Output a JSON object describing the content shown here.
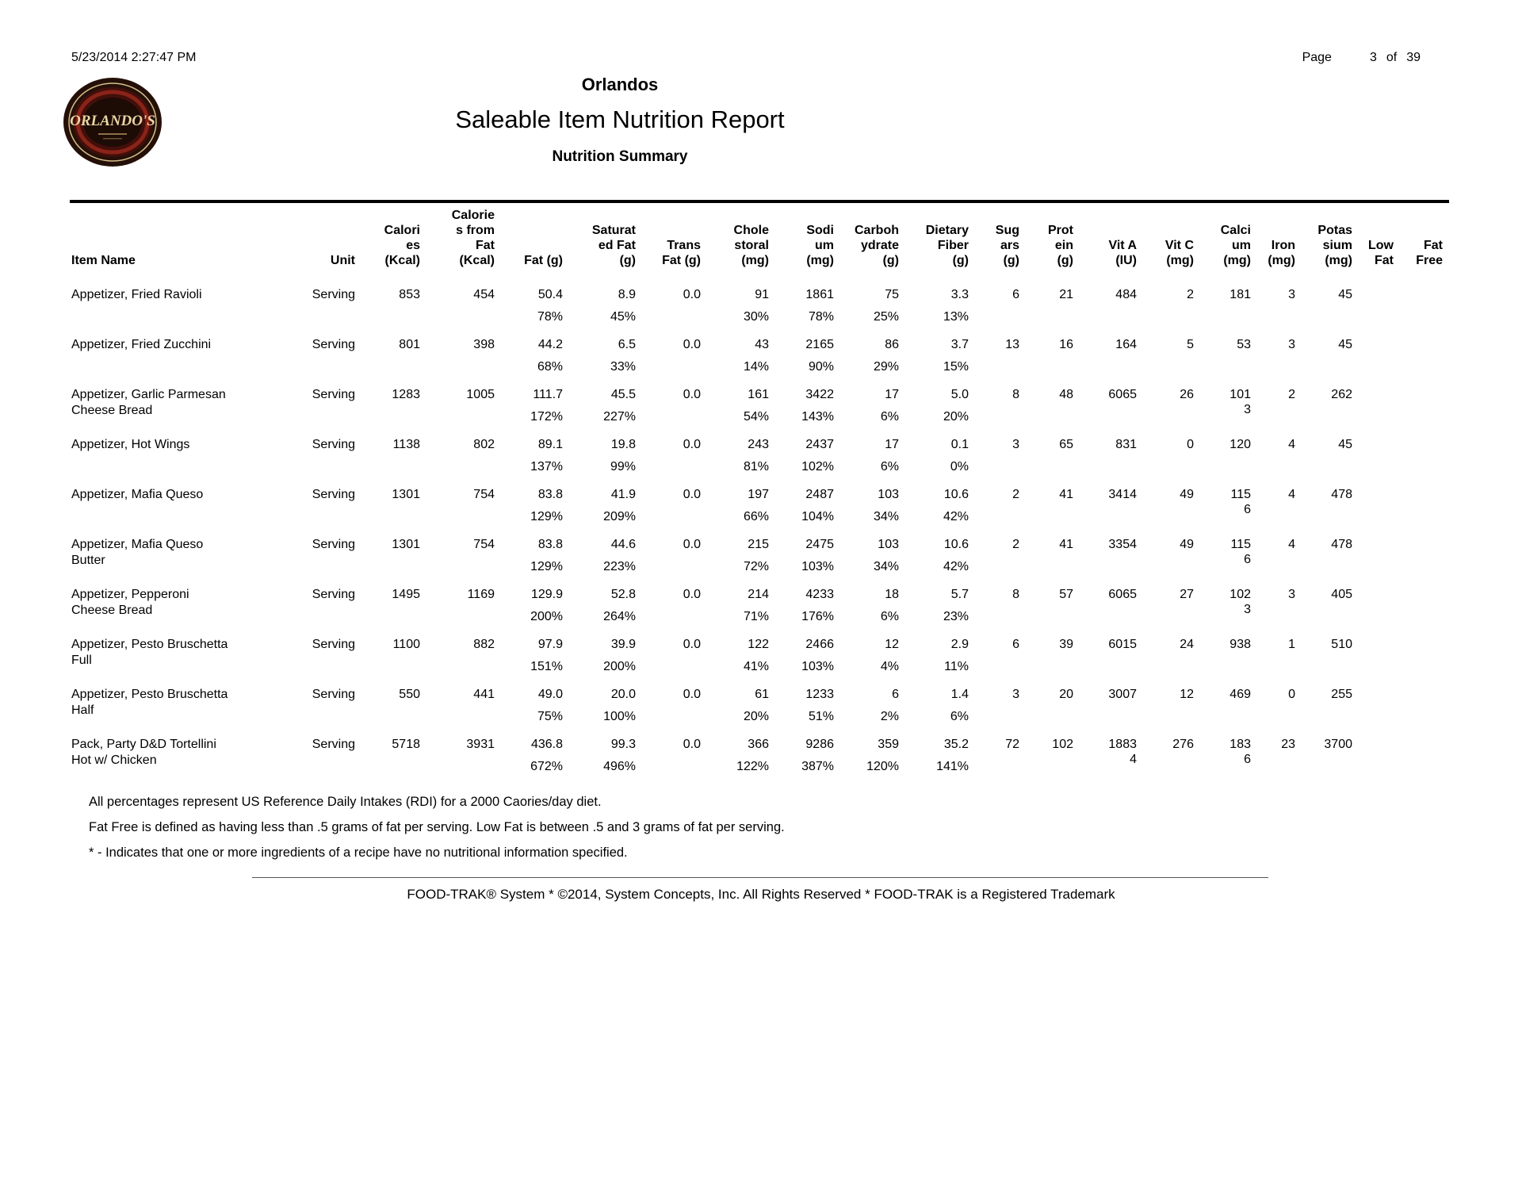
{
  "header": {
    "datetime": "5/23/2014 2:27:47 PM",
    "page_label": "Page",
    "page_number": "3",
    "page_of_label": "of",
    "page_total": "39",
    "logo_text": "ORLANDO'S",
    "company": "Orlandos",
    "report_title": "Saleable Item Nutrition Report",
    "subtitle": "Nutrition Summary"
  },
  "table": {
    "columns": [
      "Item Name",
      "Unit",
      "Calori\nes\n(Kcal)",
      "Calorie\ns from\nFat\n(Kcal)",
      "Fat (g)",
      "Saturat\ned Fat\n(g)",
      "Trans\nFat (g)",
      "Chole\nstoral\n(mg)",
      "Sodi\num\n(mg)",
      "Carboh\nydrate\n(g)",
      "Dietary\nFiber\n(g)",
      "Sug\nars\n(g)",
      "Prot\nein\n(g)",
      "Vit A\n(IU)",
      "Vit C\n(mg)",
      "Calci\num\n(mg)",
      "Iron\n(mg)",
      "Potas\nsium\n(mg)",
      "Low\nFat",
      "Fat\nFree"
    ],
    "rows": [
      {
        "name": "Appetizer, Fried Ravioli",
        "values": [
          "Serving",
          "853",
          "454",
          "50.4",
          "8.9",
          "0.0",
          "91",
          "1861",
          "75",
          "3.3",
          "6",
          "21",
          "484",
          "2",
          "181",
          "3",
          "45",
          "",
          ""
        ],
        "percents": [
          "",
          "",
          "",
          "78%",
          "45%",
          "",
          "30%",
          "78%",
          "25%",
          "13%",
          "",
          "",
          "",
          "",
          "",
          "",
          "",
          "",
          ""
        ]
      },
      {
        "name": "Appetizer, Fried Zucchini",
        "values": [
          "Serving",
          "801",
          "398",
          "44.2",
          "6.5",
          "0.0",
          "43",
          "2165",
          "86",
          "3.7",
          "13",
          "16",
          "164",
          "5",
          "53",
          "3",
          "45",
          "",
          ""
        ],
        "percents": [
          "",
          "",
          "",
          "68%",
          "33%",
          "",
          "14%",
          "90%",
          "29%",
          "15%",
          "",
          "",
          "",
          "",
          "",
          "",
          "",
          "",
          ""
        ]
      },
      {
        "name": "Appetizer, Garlic Parmesan\nCheese Bread",
        "values": [
          "Serving",
          "1283",
          "1005",
          "111.7",
          "45.5",
          "0.0",
          "161",
          "3422",
          "17",
          "5.0",
          "8",
          "48",
          "6065",
          "26",
          "101\n3",
          "2",
          "262",
          "",
          ""
        ],
        "percents": [
          "",
          "",
          "",
          "172%",
          "227%",
          "",
          "54%",
          "143%",
          "6%",
          "20%",
          "",
          "",
          "",
          "",
          "",
          "",
          "",
          "",
          ""
        ]
      },
      {
        "name": "Appetizer, Hot Wings",
        "values": [
          "Serving",
          "1138",
          "802",
          "89.1",
          "19.8",
          "0.0",
          "243",
          "2437",
          "17",
          "0.1",
          "3",
          "65",
          "831",
          "0",
          "120",
          "4",
          "45",
          "",
          ""
        ],
        "percents": [
          "",
          "",
          "",
          "137%",
          "99%",
          "",
          "81%",
          "102%",
          "6%",
          "0%",
          "",
          "",
          "",
          "",
          "",
          "",
          "",
          "",
          ""
        ]
      },
      {
        "name": "Appetizer, Mafia Queso",
        "values": [
          "Serving",
          "1301",
          "754",
          "83.8",
          "41.9",
          "0.0",
          "197",
          "2487",
          "103",
          "10.6",
          "2",
          "41",
          "3414",
          "49",
          "115\n6",
          "4",
          "478",
          "",
          ""
        ],
        "percents": [
          "",
          "",
          "",
          "129%",
          "209%",
          "",
          "66%",
          "104%",
          "34%",
          "42%",
          "",
          "",
          "",
          "",
          "",
          "",
          "",
          "",
          ""
        ]
      },
      {
        "name": "Appetizer, Mafia Queso\nButter",
        "values": [
          "Serving",
          "1301",
          "754",
          "83.8",
          "44.6",
          "0.0",
          "215",
          "2475",
          "103",
          "10.6",
          "2",
          "41",
          "3354",
          "49",
          "115\n6",
          "4",
          "478",
          "",
          ""
        ],
        "percents": [
          "",
          "",
          "",
          "129%",
          "223%",
          "",
          "72%",
          "103%",
          "34%",
          "42%",
          "",
          "",
          "",
          "",
          "",
          "",
          "",
          "",
          ""
        ]
      },
      {
        "name": "Appetizer, Pepperoni\nCheese Bread",
        "values": [
          "Serving",
          "1495",
          "1169",
          "129.9",
          "52.8",
          "0.0",
          "214",
          "4233",
          "18",
          "5.7",
          "8",
          "57",
          "6065",
          "27",
          "102\n3",
          "3",
          "405",
          "",
          ""
        ],
        "percents": [
          "",
          "",
          "",
          "200%",
          "264%",
          "",
          "71%",
          "176%",
          "6%",
          "23%",
          "",
          "",
          "",
          "",
          "",
          "",
          "",
          "",
          ""
        ]
      },
      {
        "name": "Appetizer, Pesto Bruschetta\nFull",
        "values": [
          "Serving",
          "1100",
          "882",
          "97.9",
          "39.9",
          "0.0",
          "122",
          "2466",
          "12",
          "2.9",
          "6",
          "39",
          "6015",
          "24",
          "938",
          "1",
          "510",
          "",
          ""
        ],
        "percents": [
          "",
          "",
          "",
          "151%",
          "200%",
          "",
          "41%",
          "103%",
          "4%",
          "11%",
          "",
          "",
          "",
          "",
          "",
          "",
          "",
          "",
          ""
        ]
      },
      {
        "name": "Appetizer, Pesto Bruschetta\nHalf",
        "values": [
          "Serving",
          "550",
          "441",
          "49.0",
          "20.0",
          "0.0",
          "61",
          "1233",
          "6",
          "1.4",
          "3",
          "20",
          "3007",
          "12",
          "469",
          "0",
          "255",
          "",
          ""
        ],
        "percents": [
          "",
          "",
          "",
          "75%",
          "100%",
          "",
          "20%",
          "51%",
          "2%",
          "6%",
          "",
          "",
          "",
          "",
          "",
          "",
          "",
          "",
          ""
        ]
      },
      {
        "name": "Pack, Party D&D Tortellini\nHot w/ Chicken",
        "values": [
          "Serving",
          "5718",
          "3931",
          "436.8",
          "99.3",
          "0.0",
          "366",
          "9286",
          "359",
          "35.2",
          "72",
          "102",
          "1883\n4",
          "276",
          "183\n6",
          "23",
          "3700",
          "",
          ""
        ],
        "percents": [
          "",
          "",
          "",
          "672%",
          "496%",
          "",
          "122%",
          "387%",
          "120%",
          "141%",
          "",
          "",
          "",
          "",
          "",
          "",
          "",
          "",
          ""
        ]
      }
    ]
  },
  "notes": {
    "rdi": "All percentages represent US Reference Daily Intakes (RDI) for a 2000 Caories/day diet.",
    "fat_definitions": "Fat Free is defined as having less than .5 grams of fat per serving. Low Fat is between .5 and 3 grams of fat per serving.",
    "asterisk": "* - Indicates that one or more ingredients of a recipe have no nutritional information specified."
  },
  "footer": {
    "copyright": "FOOD-TRAK® System * ©2014, System Concepts, Inc. All Rights Reserved * FOOD-TRAK is a Registered Trademark"
  }
}
